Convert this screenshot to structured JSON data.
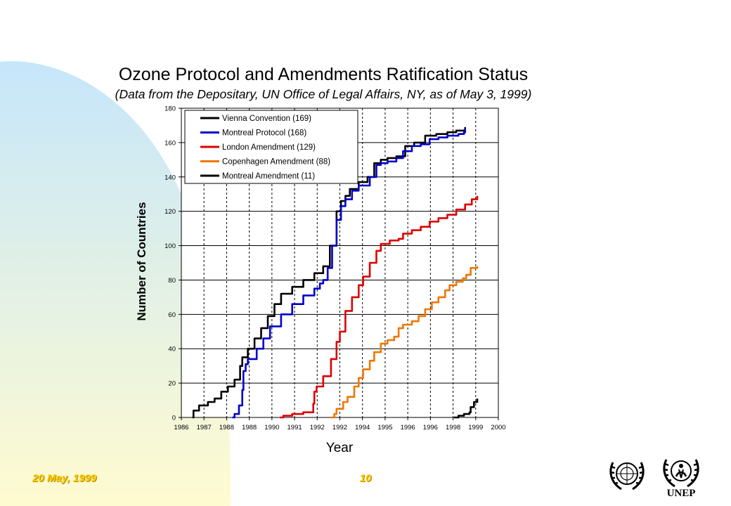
{
  "slide": {
    "title": "Ozone Protocol and Amendments Ratification Status",
    "subtitle": "(Data from the Depositary, UN Office of Legal Affairs, NY, as of May 3, 1999)",
    "footer_date": "20 May, 1999",
    "page_number": "10",
    "logo_text": "UNEP",
    "colors": {
      "gradient_top": "#c6e6fb",
      "gradient_bottom": "#fffbd0",
      "footer_text": "#ffcc00"
    }
  },
  "chart_data": {
    "type": "line",
    "xlabel": "Year",
    "ylabel": "Number of Countries",
    "ylim": [
      0,
      180
    ],
    "yticks": [
      0,
      20,
      40,
      60,
      80,
      100,
      120,
      140,
      160,
      180
    ],
    "xlim": [
      1986.0,
      2000.3
    ],
    "xtick_labels": [
      "1986",
      "1987",
      "1988",
      "1988",
      "1990",
      "1991",
      "1992",
      "1992",
      "1994",
      "1995",
      "1996",
      "1996",
      "1998",
      "1999",
      "2000"
    ],
    "grid": "vertical dashed at each tick, horizontal solid at each y tick",
    "legend_position": "top-left",
    "series": [
      {
        "name": "Vienna Convention (169)",
        "color": "#000000",
        "x": [
          1986.5,
          1986.55,
          1986.8,
          1987.2,
          1987.5,
          1987.8,
          1988.1,
          1988.4,
          1988.65,
          1988.75,
          1989.0,
          1989.3,
          1989.6,
          1989.9,
          1990.2,
          1990.5,
          1991.0,
          1991.5,
          1992.0,
          1992.4,
          1992.7,
          1993.0,
          1993.2,
          1993.4,
          1993.6,
          1994.0,
          1994.4,
          1994.7,
          1995.0,
          1995.3,
          1995.7,
          1996.1,
          1996.5,
          1997.0,
          1997.5,
          1998.0,
          1998.4,
          1998.75,
          1998.8
        ],
        "y": [
          0,
          4,
          7,
          9,
          11,
          15,
          18,
          22,
          30,
          35,
          40,
          46,
          52,
          59,
          66,
          72,
          76,
          80,
          84,
          88,
          100,
          120,
          126,
          129,
          133,
          137,
          140,
          148,
          150,
          151,
          152,
          158,
          160,
          164,
          165,
          166,
          167,
          167,
          169
        ]
      },
      {
        "name": "Montreal Protocol (168)",
        "color": "#0000cc",
        "x": [
          1988.3,
          1988.4,
          1988.6,
          1988.75,
          1988.8,
          1988.9,
          1989.0,
          1989.4,
          1989.7,
          1990.0,
          1990.5,
          1991.0,
          1991.5,
          1992.0,
          1992.25,
          1992.4,
          1992.6,
          1992.8,
          1993.0,
          1993.2,
          1993.4,
          1993.7,
          1994.0,
          1994.5,
          1994.8,
          1995.0,
          1995.3,
          1995.7,
          1996.0,
          1996.4,
          1996.8,
          1997.2,
          1997.6,
          1998.0,
          1998.5,
          1998.75,
          1998.8
        ],
        "y": [
          0,
          2,
          7,
          16,
          27,
          31,
          34,
          40,
          46,
          53,
          60,
          66,
          71,
          75,
          78,
          80,
          87,
          100,
          115,
          123,
          127,
          132,
          135,
          140,
          147,
          148,
          149,
          151,
          155,
          158,
          159,
          162,
          163,
          164,
          165,
          166,
          168
        ]
      },
      {
        "name": "London Amendment (129)",
        "color": "#dd0000",
        "x": [
          1990.45,
          1990.6,
          1991.0,
          1991.5,
          1991.95,
          1992.0,
          1992.1,
          1992.4,
          1992.75,
          1993.0,
          1993.15,
          1993.4,
          1993.7,
          1994.0,
          1994.2,
          1994.5,
          1994.8,
          1995.0,
          1995.4,
          1995.8,
          1996.0,
          1996.4,
          1996.8,
          1997.2,
          1997.6,
          1998.0,
          1998.4,
          1998.8,
          1999.1,
          1999.35
        ],
        "y": [
          0,
          1,
          2,
          3,
          8,
          15,
          18,
          24,
          34,
          44,
          50,
          62,
          70,
          77,
          82,
          90,
          97,
          101,
          103,
          104,
          107,
          109,
          111,
          114,
          116,
          118,
          121,
          124,
          127,
          129
        ]
      },
      {
        "name": "Copenhagen Amendment (88)",
        "color": "#ee7700",
        "x": [
          1992.75,
          1992.9,
          1993.0,
          1993.3,
          1993.5,
          1993.8,
          1994.0,
          1994.2,
          1994.5,
          1994.7,
          1995.0,
          1995.3,
          1995.6,
          1995.8,
          1996.0,
          1996.4,
          1996.7,
          1997.0,
          1997.3,
          1997.6,
          1997.9,
          1998.1,
          1998.4,
          1998.7,
          1998.85,
          1999.05,
          1999.35
        ],
        "y": [
          0,
          2,
          5,
          9,
          12,
          18,
          23,
          28,
          33,
          38,
          43,
          45,
          47,
          52,
          54,
          56,
          59,
          63,
          67,
          70,
          74,
          77,
          79,
          81,
          83,
          87,
          88
        ]
      },
      {
        "name": "Montreal Amendment (11)",
        "color": "#000000",
        "x": [
          1998.3,
          1998.5,
          1998.75,
          1999.0,
          1999.05,
          1999.2,
          1999.35
        ],
        "y": [
          0,
          1,
          2,
          3,
          6,
          9,
          11
        ]
      }
    ]
  }
}
